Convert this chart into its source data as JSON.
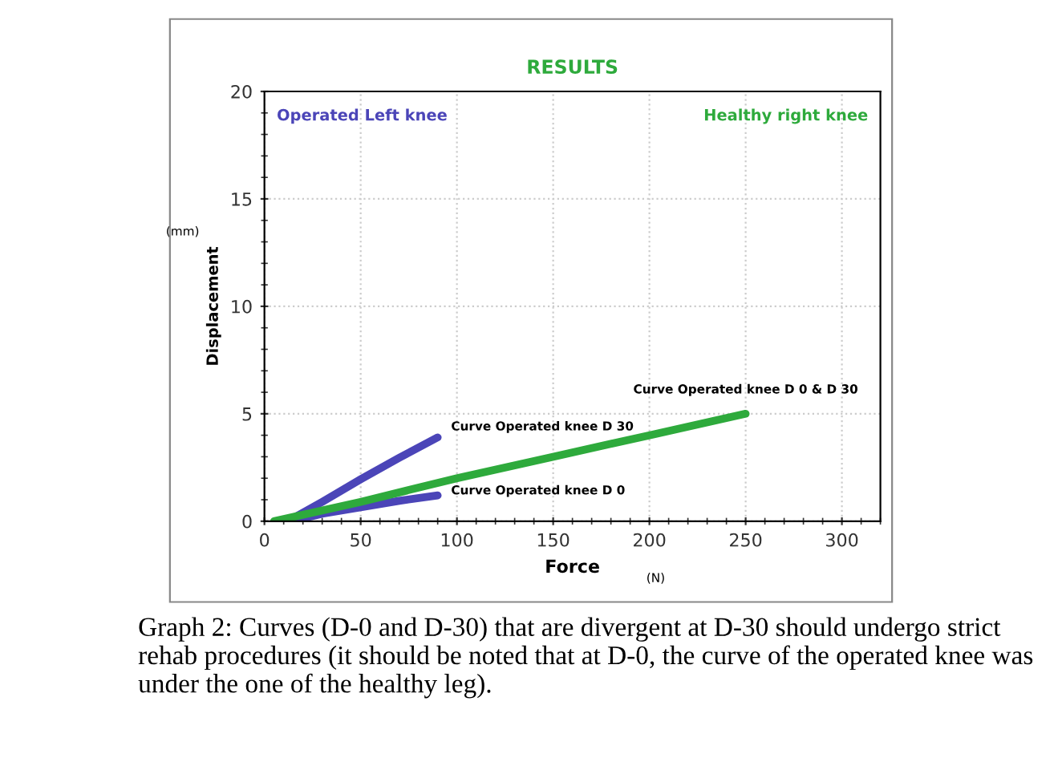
{
  "chart_data": {
    "type": "line",
    "title": "RESULTS",
    "xlabel": "Force",
    "ylabel": "Displacement",
    "xlim": [
      0,
      320
    ],
    "xticks": [
      0,
      50,
      100,
      150,
      200,
      250,
      300
    ],
    "ylim": [
      0,
      20
    ],
    "yticks": [
      0,
      5,
      10,
      15,
      20
    ],
    "grid": true,
    "marker": "none",
    "line_style": "solid",
    "series": [
      {
        "name": "Curve Operated knee D 30",
        "color": "#4b45b8",
        "x": [
          14,
          30,
          50,
          70,
          90
        ],
        "values": [
          0.1,
          0.9,
          1.95,
          2.95,
          3.9
        ]
      },
      {
        "name": "Curve Operated knee D 0",
        "color": "#4b45b8",
        "x": [
          14,
          30,
          50,
          70,
          90
        ],
        "values": [
          0.0,
          0.35,
          0.65,
          0.95,
          1.2
        ]
      },
      {
        "name": "Curve Operated knee D 0 & D 30",
        "color": "#2eaa3c",
        "x": [
          5,
          50,
          100,
          150,
          200,
          250
        ],
        "values": [
          0.0,
          0.9,
          2.0,
          3.0,
          4.0,
          5.0
        ]
      }
    ],
    "annotations": [
      {
        "text": "Operated Left knee"
      },
      {
        "text": "Healthy right knee"
      },
      {
        "text": "(mm)"
      },
      {
        "text": "(N)"
      },
      {
        "text": "Graph 2: Curves (D-0 and D-30) that are divergent at D-30 should undergo strict rehab procedures (it should be noted that at D-0, the curve of the operated knee was under the one of the healthy leg)."
      }
    ]
  }
}
